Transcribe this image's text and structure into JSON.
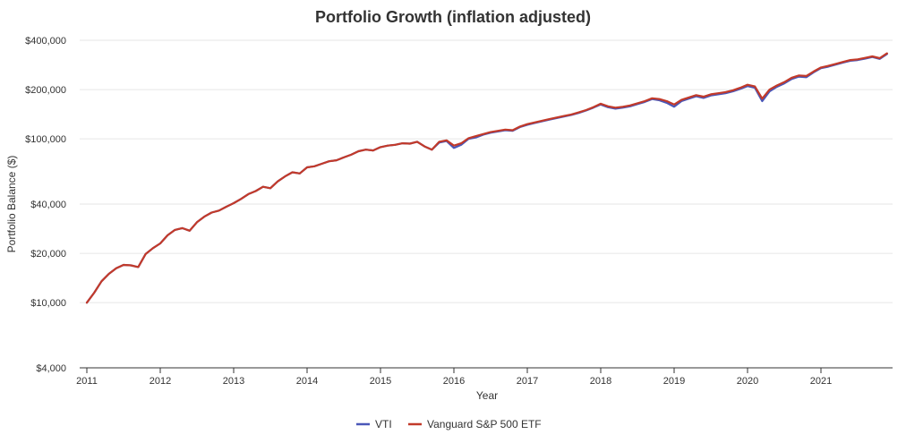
{
  "chart_data": {
    "type": "line",
    "title": "Portfolio Growth (inflation adjusted)",
    "xlabel": "Year",
    "ylabel": "Portfolio Balance ($)",
    "yscale": "log",
    "ylim": [
      4000,
      400000
    ],
    "xlim": [
      2011.0,
      2021.9
    ],
    "grid": true,
    "legend_position": "bottom-center",
    "x_ticks": [
      "2011",
      "2012",
      "2013",
      "2014",
      "2015",
      "2016",
      "2017",
      "2018",
      "2019",
      "2020",
      "2021"
    ],
    "x_tick_values": [
      2011,
      2012,
      2013,
      2014,
      2015,
      2016,
      2017,
      2018,
      2019,
      2020,
      2021
    ],
    "y_ticks": [
      "$4,000",
      "$10,000",
      "$20,000",
      "$40,000",
      "$100,000",
      "$200,000",
      "$400,000"
    ],
    "y_tick_values": [
      4000,
      10000,
      20000,
      40000,
      100000,
      200000,
      400000
    ],
    "x": [
      2011.0,
      2011.1,
      2011.2,
      2011.3,
      2011.4,
      2011.5,
      2011.6,
      2011.7,
      2011.8,
      2011.9,
      2012.0,
      2012.1,
      2012.2,
      2012.3,
      2012.4,
      2012.5,
      2012.6,
      2012.7,
      2012.8,
      2012.9,
      2013.0,
      2013.1,
      2013.2,
      2013.3,
      2013.4,
      2013.5,
      2013.6,
      2013.7,
      2013.8,
      2013.9,
      2014.0,
      2014.1,
      2014.2,
      2014.3,
      2014.4,
      2014.5,
      2014.6,
      2014.7,
      2014.8,
      2014.9,
      2015.0,
      2015.1,
      2015.2,
      2015.3,
      2015.4,
      2015.5,
      2015.6,
      2015.7,
      2015.8,
      2015.9,
      2016.0,
      2016.1,
      2016.2,
      2016.3,
      2016.4,
      2016.5,
      2016.6,
      2016.7,
      2016.8,
      2016.9,
      2017.0,
      2017.1,
      2017.2,
      2017.3,
      2017.4,
      2017.5,
      2017.6,
      2017.7,
      2017.8,
      2017.9,
      2018.0,
      2018.1,
      2018.2,
      2018.3,
      2018.4,
      2018.5,
      2018.6,
      2018.7,
      2018.8,
      2018.9,
      2019.0,
      2019.1,
      2019.2,
      2019.3,
      2019.4,
      2019.5,
      2019.6,
      2019.7,
      2019.8,
      2019.9,
      2020.0,
      2020.1,
      2020.2,
      2020.3,
      2020.4,
      2020.5,
      2020.6,
      2020.7,
      2020.8,
      2020.9,
      2021.0,
      2021.1,
      2021.2,
      2021.3,
      2021.4,
      2021.5,
      2021.6,
      2021.7,
      2021.8,
      2021.9
    ],
    "series": [
      {
        "name": "VTI",
        "color": "#4a57b8",
        "values": [
          10000,
          11500,
          13500,
          15000,
          16200,
          17000,
          16900,
          16500,
          19800,
          21500,
          23000,
          25800,
          27800,
          28500,
          27500,
          31000,
          33500,
          35500,
          36500,
          38500,
          40500,
          43000,
          46000,
          48000,
          51000,
          50000,
          55000,
          59000,
          62500,
          61500,
          67000,
          68000,
          70500,
          73000,
          74000,
          77000,
          80000,
          84000,
          86000,
          85000,
          89000,
          91000,
          92000,
          94000,
          93500,
          96000,
          90000,
          86000,
          95000,
          97000,
          88000,
          92000,
          100000,
          102000,
          106000,
          109000,
          111000,
          113000,
          112000,
          118000,
          122000,
          125000,
          128000,
          131000,
          134000,
          137000,
          140000,
          144000,
          149000,
          155000,
          162000,
          156000,
          153000,
          155000,
          158000,
          163000,
          168000,
          175000,
          172000,
          166000,
          157000,
          170000,
          176000,
          182000,
          178000,
          184000,
          187000,
          190000,
          195000,
          202000,
          210000,
          205000,
          170000,
          195000,
          208000,
          218000,
          232000,
          240000,
          238000,
          255000,
          270000,
          276000,
          284000,
          292000,
          300000,
          303000,
          309000,
          316000,
          308000,
          330000
        ]
      },
      {
        "name": "Vanguard S&P 500 ETF",
        "color": "#c23a2a",
        "values": [
          10000,
          11500,
          13500,
          15000,
          16200,
          17000,
          16900,
          16500,
          19800,
          21500,
          23000,
          25800,
          27800,
          28500,
          27500,
          31000,
          33500,
          35500,
          36500,
          38500,
          40500,
          43000,
          46000,
          48000,
          51000,
          50000,
          55000,
          59000,
          62500,
          61500,
          67000,
          68000,
          70500,
          73000,
          74000,
          77000,
          80000,
          84000,
          86000,
          85000,
          89000,
          91000,
          92000,
          94000,
          93500,
          96000,
          90000,
          86000,
          96000,
          98000,
          91000,
          94000,
          101000,
          104000,
          107000,
          110000,
          112000,
          114000,
          113000,
          119000,
          123000,
          126000,
          129000,
          132000,
          135000,
          138000,
          141000,
          145000,
          150000,
          156000,
          164000,
          158000,
          155000,
          157000,
          160000,
          165000,
          170000,
          177000,
          175000,
          170000,
          162000,
          173000,
          179000,
          185000,
          181000,
          187000,
          190000,
          193000,
          198000,
          205000,
          214000,
          209000,
          176000,
          200000,
          212000,
          222000,
          236000,
          244000,
          242000,
          258000,
          273000,
          279000,
          287000,
          295000,
          303000,
          306000,
          312000,
          319000,
          311000,
          333000
        ]
      }
    ]
  }
}
